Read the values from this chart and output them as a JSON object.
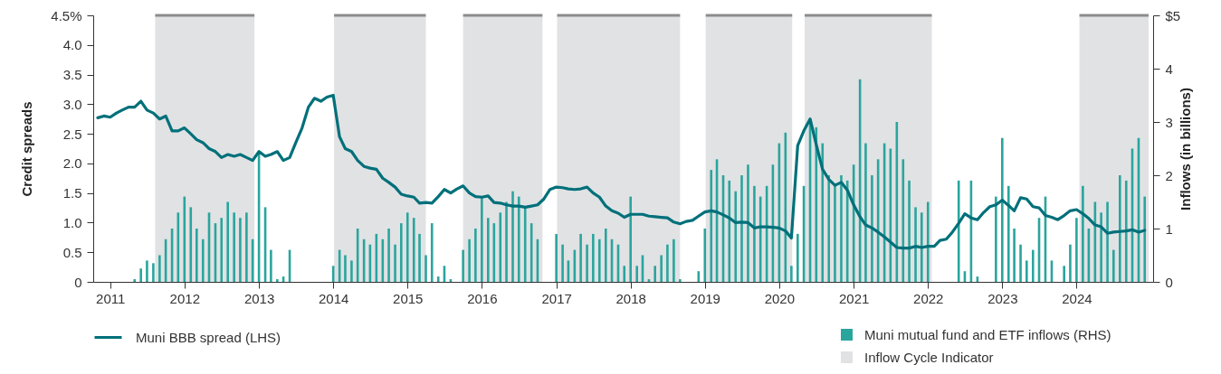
{
  "chart_data": {
    "type": "bar",
    "ylabel": "Credit spreads",
    "y2label": "Inflows (in billions)",
    "legend": "bottom",
    "grid": false,
    "x": [
      "2010-11",
      "2010-12",
      "2011-01",
      "2011-02",
      "2011-03",
      "2011-04",
      "2011-05",
      "2011-06",
      "2011-07",
      "2011-08",
      "2011-09",
      "2011-10",
      "2011-11",
      "2011-12",
      "2012-01",
      "2012-02",
      "2012-03",
      "2012-04",
      "2012-05",
      "2012-06",
      "2012-07",
      "2012-08",
      "2012-09",
      "2012-10",
      "2012-11",
      "2012-12",
      "2013-01",
      "2013-02",
      "2013-03",
      "2013-04",
      "2013-05",
      "2013-06",
      "2013-07",
      "2013-08",
      "2013-09",
      "2013-10",
      "2013-11",
      "2013-12",
      "2014-01",
      "2014-02",
      "2014-03",
      "2014-04",
      "2014-05",
      "2014-06",
      "2014-07",
      "2014-08",
      "2014-09",
      "2014-10",
      "2014-11",
      "2014-12",
      "2015-01",
      "2015-02",
      "2015-03",
      "2015-04",
      "2015-05",
      "2015-06",
      "2015-07",
      "2015-08",
      "2015-09",
      "2015-10",
      "2015-11",
      "2015-12",
      "2016-01",
      "2016-02",
      "2016-03",
      "2016-04",
      "2016-05",
      "2016-06",
      "2016-07",
      "2016-08",
      "2016-09",
      "2016-10",
      "2016-11",
      "2016-12",
      "2017-01",
      "2017-02",
      "2017-03",
      "2017-04",
      "2017-05",
      "2017-06",
      "2017-07",
      "2017-08",
      "2017-09",
      "2017-10",
      "2017-11",
      "2017-12",
      "2018-01",
      "2018-02",
      "2018-03",
      "2018-04",
      "2018-05",
      "2018-06",
      "2018-07",
      "2018-08",
      "2018-09",
      "2018-10",
      "2018-11",
      "2018-12",
      "2019-01",
      "2019-02",
      "2019-03",
      "2019-04",
      "2019-05",
      "2019-06",
      "2019-07",
      "2019-08",
      "2019-09",
      "2019-10",
      "2019-11",
      "2019-12",
      "2020-01",
      "2020-02",
      "2020-03",
      "2020-04",
      "2020-05",
      "2020-06",
      "2020-07",
      "2020-08",
      "2020-09",
      "2020-10",
      "2020-11",
      "2020-12",
      "2021-01",
      "2021-02",
      "2021-03",
      "2021-04",
      "2021-05",
      "2021-06",
      "2021-07",
      "2021-08",
      "2021-09",
      "2021-10",
      "2021-11",
      "2021-12",
      "2022-01",
      "2022-02",
      "2022-03",
      "2022-04",
      "2022-05",
      "2022-06",
      "2022-07",
      "2022-08",
      "2022-09",
      "2022-10",
      "2022-11",
      "2022-12",
      "2023-01",
      "2023-02",
      "2023-03",
      "2023-04",
      "2023-05",
      "2023-06",
      "2023-07",
      "2023-08",
      "2023-09",
      "2023-10",
      "2023-11",
      "2023-12",
      "2024-01",
      "2024-02",
      "2024-03",
      "2024-04",
      "2024-05",
      "2024-06",
      "2024-07",
      "2024-08",
      "2024-09",
      "2024-10",
      "2024-11",
      "2024-12"
    ],
    "series": [
      {
        "name": "Muni mutual fund and ETF inflows (RHS)",
        "axis": "y2",
        "color": "#2aa59d",
        "values": [
          null,
          null,
          null,
          null,
          null,
          null,
          0.05,
          0.25,
          0.4,
          0.35,
          0.5,
          0.8,
          1.0,
          1.3,
          1.6,
          1.4,
          1.0,
          0.8,
          1.3,
          1.1,
          1.2,
          1.5,
          1.3,
          1.2,
          1.3,
          0.8,
          2.4,
          1.4,
          0.6,
          0.05,
          0.1,
          0.6,
          null,
          null,
          null,
          null,
          null,
          null,
          0.3,
          0.6,
          0.5,
          0.4,
          1.0,
          0.8,
          0.7,
          0.9,
          0.8,
          1.0,
          0.7,
          1.1,
          1.3,
          1.2,
          0.9,
          0.5,
          1.1,
          0.1,
          0.3,
          0.05,
          null,
          0.6,
          0.8,
          1.0,
          1.6,
          1.2,
          1.1,
          1.3,
          1.5,
          1.7,
          1.6,
          1.4,
          1.1,
          0.8,
          null,
          null,
          0.9,
          0.7,
          0.4,
          0.6,
          0.9,
          0.7,
          0.9,
          0.8,
          1.0,
          0.8,
          0.7,
          0.3,
          1.6,
          0.3,
          0.5,
          0.05,
          0.3,
          0.5,
          0.7,
          0.8,
          0.05,
          null,
          null,
          0.2,
          1.0,
          2.1,
          2.3,
          2.0,
          1.9,
          1.7,
          2.0,
          2.2,
          1.8,
          1.6,
          1.8,
          2.2,
          2.6,
          2.8,
          0.3,
          0.9,
          1.8,
          3.0,
          2.9,
          2.6,
          2.0,
          1.8,
          2.0,
          1.9,
          2.2,
          3.8,
          2.6,
          2.0,
          2.3,
          2.6,
          2.5,
          3.0,
          2.3,
          1.9,
          1.4,
          1.3,
          1.5,
          null,
          null,
          null,
          null,
          1.9,
          0.2,
          1.9,
          0.1,
          null,
          null,
          1.6,
          2.7,
          1.8,
          1.0,
          0.7,
          0.4,
          0.6,
          1.2,
          1.6,
          0.4,
          null,
          0.3,
          0.7,
          1.2,
          1.8,
          1.0,
          1.5,
          1.3,
          1.5,
          0.6,
          2.0,
          1.9,
          2.5,
          2.7,
          1.6
        ]
      },
      {
        "name": "Muni BBB spread (LHS)",
        "type": "line",
        "color": "#00707a",
        "values": [
          2.77,
          2.8,
          2.78,
          2.85,
          2.9,
          2.95,
          2.95,
          3.05,
          2.9,
          2.85,
          2.75,
          2.8,
          2.55,
          2.55,
          2.6,
          2.5,
          2.4,
          2.35,
          2.25,
          2.2,
          2.1,
          2.15,
          2.12,
          2.15,
          2.1,
          2.05,
          2.2,
          2.12,
          2.15,
          2.2,
          2.05,
          2.1,
          2.35,
          2.6,
          2.95,
          3.1,
          3.05,
          3.12,
          3.15,
          2.45,
          2.25,
          2.2,
          2.05,
          1.95,
          1.92,
          1.9,
          1.75,
          1.68,
          1.6,
          1.48,
          1.45,
          1.43,
          1.33,
          1.34,
          1.33,
          1.44,
          1.56,
          1.5,
          1.57,
          1.62,
          1.5,
          1.44,
          1.43,
          1.45,
          1.34,
          1.33,
          1.3,
          1.28,
          1.28,
          1.26,
          1.28,
          1.3,
          1.4,
          1.56,
          1.6,
          1.59,
          1.57,
          1.56,
          1.57,
          1.6,
          1.5,
          1.43,
          1.28,
          1.2,
          1.16,
          1.09,
          1.14,
          1.14,
          1.14,
          1.11,
          1.1,
          1.09,
          1.08,
          1.01,
          0.98,
          1.02,
          1.04,
          1.11,
          1.18,
          1.2,
          1.18,
          1.13,
          1.08,
          1.0,
          1.01,
          1.0,
          0.91,
          0.93,
          0.93,
          0.92,
          0.91,
          0.86,
          0.74,
          2.3,
          2.55,
          2.75,
          2.32,
          1.9,
          1.73,
          1.63,
          1.68,
          1.55,
          1.3,
          1.1,
          0.96,
          0.91,
          0.84,
          0.76,
          0.67,
          0.58,
          0.57,
          0.57,
          0.6,
          0.58,
          0.6,
          0.6,
          0.7,
          0.72,
          0.84,
          0.99,
          1.15,
          1.08,
          1.05,
          1.17,
          1.27,
          1.3,
          1.38,
          1.29,
          1.2,
          1.42,
          1.4,
          1.27,
          1.25,
          1.12,
          1.09,
          1.05,
          1.12,
          1.2,
          1.22,
          1.15,
          1.07,
          0.96,
          0.93,
          0.82,
          0.84,
          0.85,
          0.86,
          0.88,
          0.84,
          0.87
        ]
      }
    ],
    "bands": [
      {
        "axis": "x",
        "from": "2011-08-10",
        "to": "2012-12-10",
        "label": "Inflow Cycle Indicator",
        "color": "#e1e2e4"
      },
      {
        "axis": "x",
        "from": "2014-01-05",
        "to": "2015-04-01",
        "color": "#e1e2e4"
      },
      {
        "axis": "x",
        "from": "2015-10-01",
        "to": "2016-10-25",
        "color": "#e1e2e4"
      },
      {
        "axis": "x",
        "from": "2017-01-05",
        "to": "2018-09-01",
        "color": "#e1e2e4"
      },
      {
        "axis": "x",
        "from": "2019-01-05",
        "to": "2020-03-05",
        "color": "#e1e2e4"
      },
      {
        "axis": "x",
        "from": "2020-05-05",
        "to": "2022-01-20",
        "color": "#e1e2e4"
      },
      {
        "axis": "x",
        "from": "2024-01-15",
        "to": "2024-12-20",
        "color": "#e1e2e4"
      }
    ],
    "xlim": [
      "2010-11",
      "2024-12-20"
    ],
    "xticks": [
      "2011",
      "2012",
      "2013",
      "2014",
      "2015",
      "2016",
      "2017",
      "2018",
      "2019",
      "2020",
      "2021",
      "2022",
      "2023",
      "2024"
    ],
    "ylim": [
      0,
      4.5
    ],
    "yticks": [
      0,
      0.5,
      {
        "value": 1,
        "label": "1.0"
      },
      1.5,
      {
        "value": 2,
        "label": "2.0"
      },
      2.5,
      {
        "value": 3,
        "label": "3.0"
      },
      3.5,
      {
        "value": 4,
        "label": "4.0"
      },
      {
        "value": 4.5,
        "label": "4.5%"
      }
    ],
    "y2lim": [
      0,
      5
    ],
    "y2ticks": [
      0,
      1,
      2,
      3,
      4,
      {
        "value": 5,
        "label": "$5"
      }
    ]
  }
}
